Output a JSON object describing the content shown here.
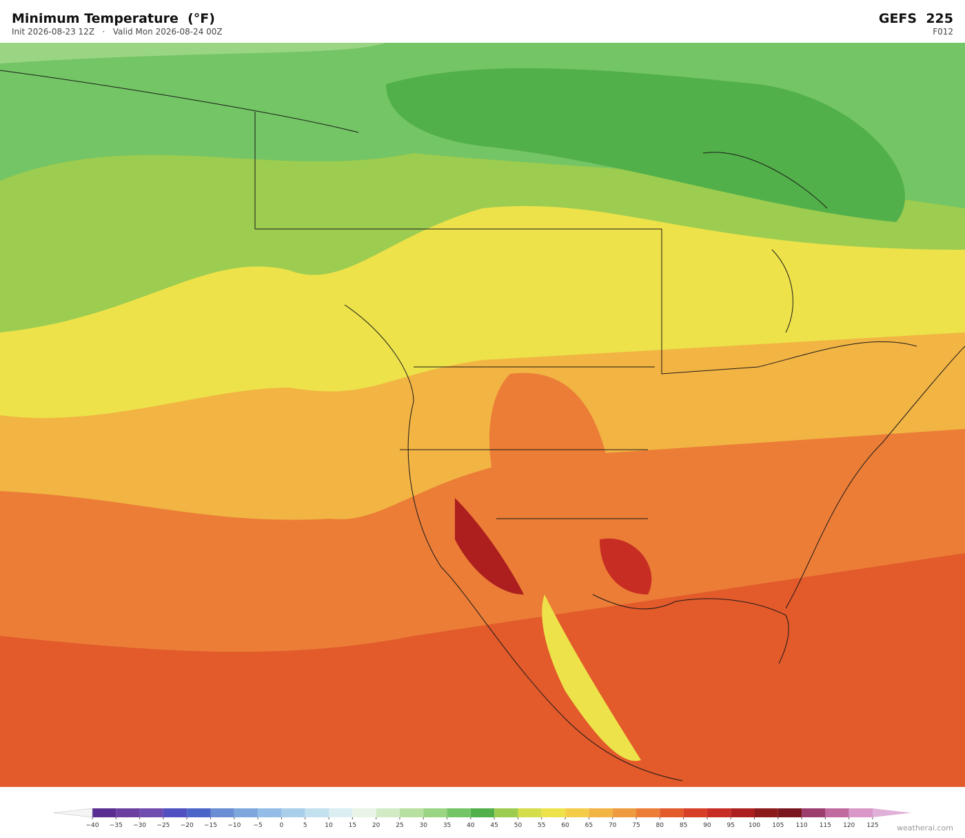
{
  "header": {
    "title": "Minimum Temperature  (°F)",
    "subtitle": "Init 2026-08-23 12Z   ·   Valid Mon 2026-08-24 00Z",
    "model": "GEFS  225",
    "forecast_hour": "F012"
  },
  "colorbar": {
    "ticks": [
      {
        "value": -40,
        "label": "−40"
      },
      {
        "value": -35,
        "label": "−35"
      },
      {
        "value": -30,
        "label": "−30"
      },
      {
        "value": -25,
        "label": "−25"
      },
      {
        "value": -20,
        "label": "−20"
      },
      {
        "value": -15,
        "label": "−15"
      },
      {
        "value": -10,
        "label": "−10"
      },
      {
        "value": -5,
        "label": "−5"
      },
      0,
      5,
      10,
      15,
      20,
      25,
      30,
      35,
      40,
      45,
      50,
      55,
      60,
      65,
      70,
      75,
      80,
      85,
      90,
      95,
      100,
      105,
      110,
      115,
      120,
      125
    ],
    "colors": [
      "#5a2d91",
      "#6a3fa0",
      "#6f4cb0",
      "#5050c0",
      "#4b66c8",
      "#6a8dd3",
      "#7ea8dd",
      "#93bde6",
      "#a9cfea",
      "#c3e0ef",
      "#dbeef2",
      "#e8f4e6",
      "#d2ebc5",
      "#b8e0a0",
      "#9ad584",
      "#74c565",
      "#52b04a",
      "#9ccc50",
      "#d4de4a",
      "#ede24a",
      "#f4cd48",
      "#f2b443",
      "#ee9a3e",
      "#eb7d37",
      "#e35a2b",
      "#d73f26",
      "#c72d23",
      "#ad1f1f",
      "#8c1a1a",
      "#7a1620",
      "#9c3d6e",
      "#c06aa0",
      "#d998c8"
    ],
    "under_color": "#f4f4f4",
    "over_color": "#e0b0d8"
  },
  "footer": {
    "credit": "weatherai.com"
  }
}
